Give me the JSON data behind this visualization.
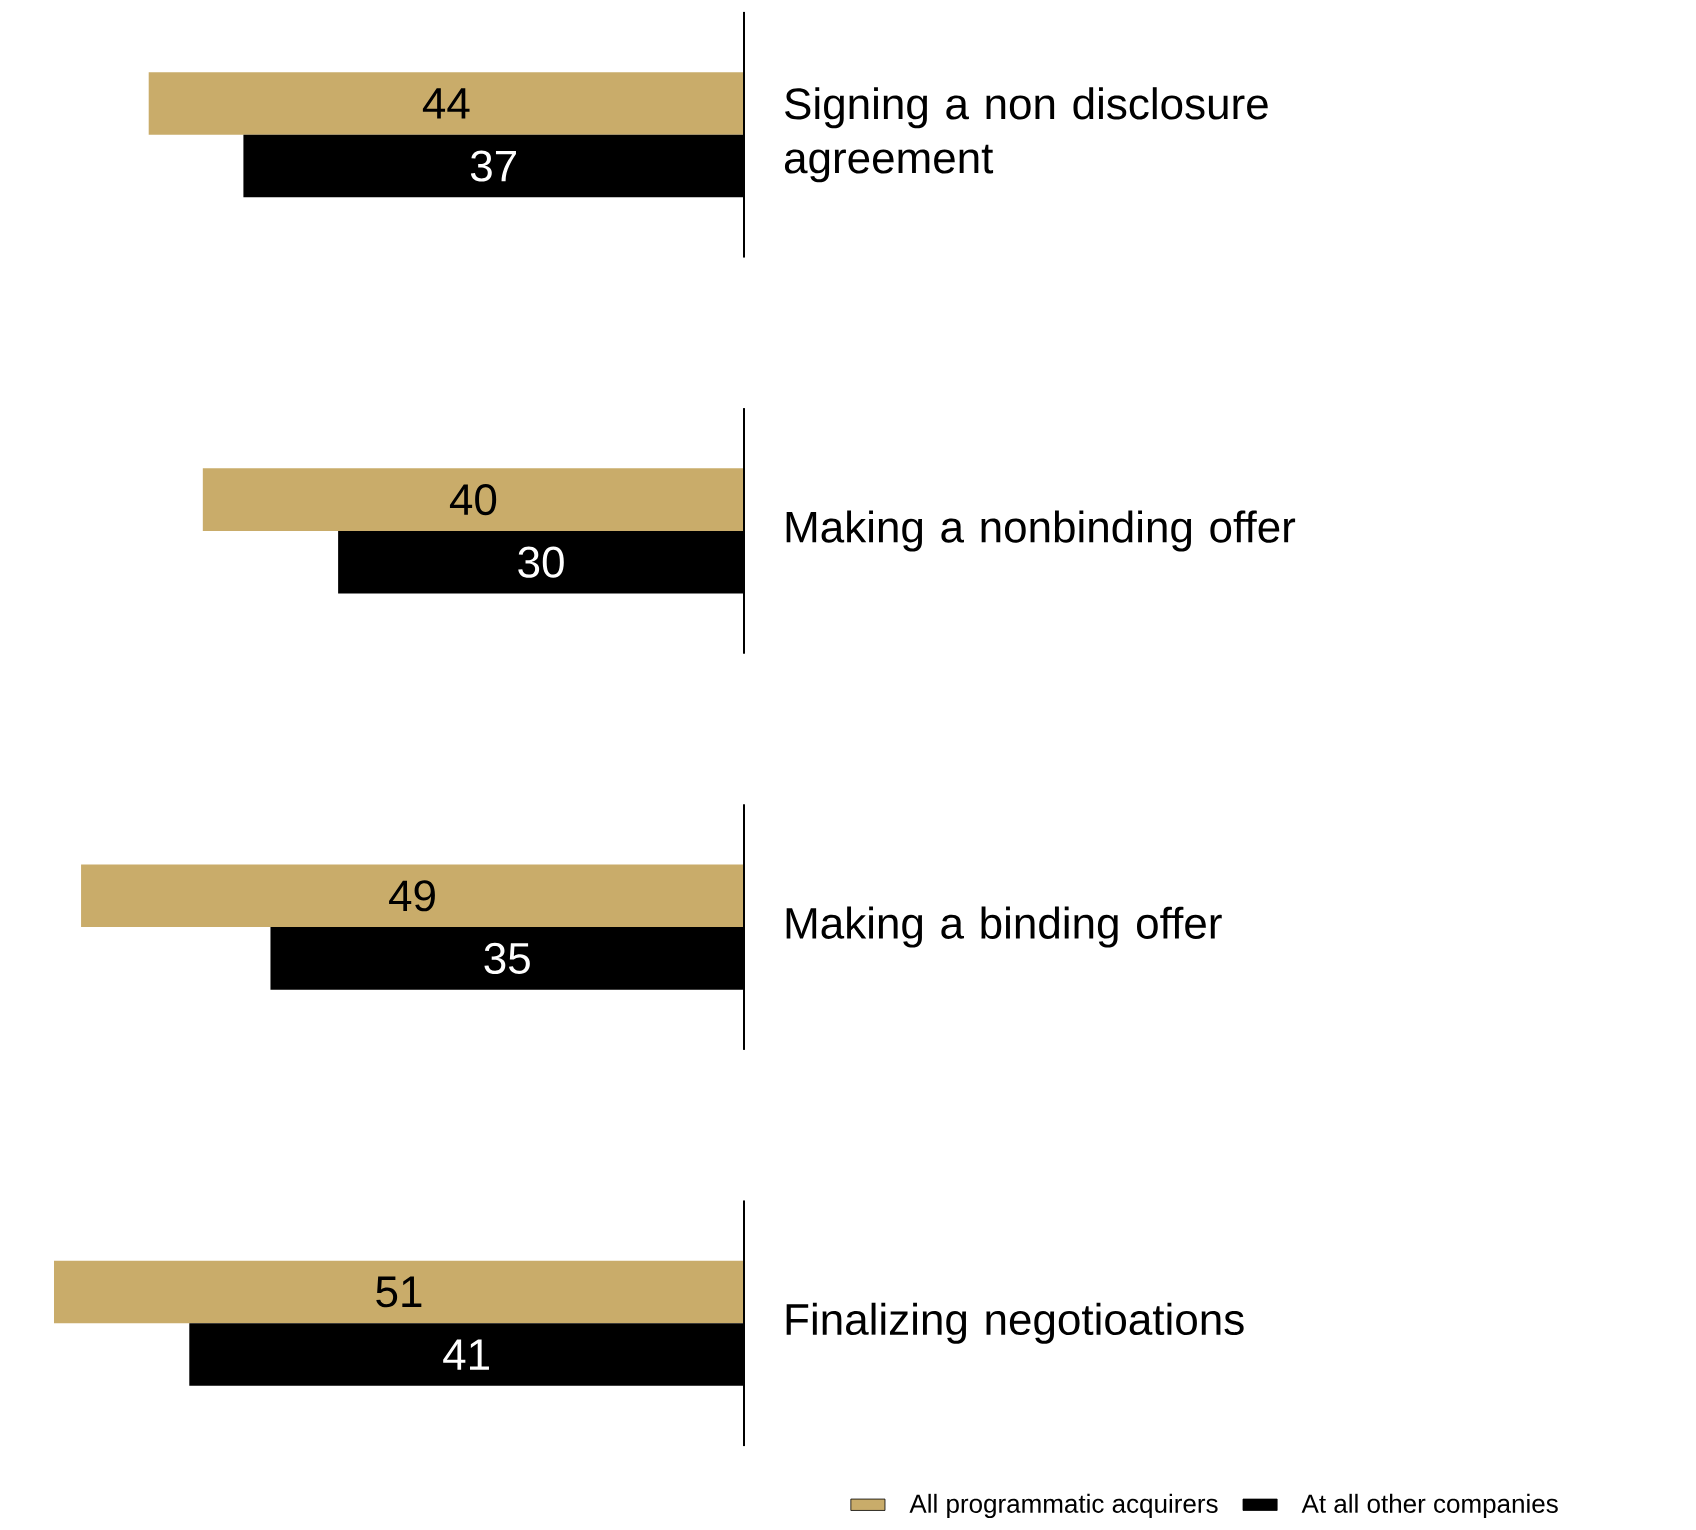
{
  "chart_data": {
    "type": "bar",
    "orientation": "horizontal",
    "categories": [
      "Signing a non disclosure agreement",
      "Making a nonbinding offer",
      "Making a binding offer",
      "Finalizing negotioations"
    ],
    "series": [
      {
        "name": "All programmatic acquirers",
        "color": "#c9ac6a",
        "values": [
          44,
          40,
          49,
          51
        ]
      },
      {
        "name": "At all other companies",
        "color": "#000000",
        "values": [
          37,
          30,
          35,
          41
        ]
      }
    ],
    "data_labels": true,
    "legend": "bottom right"
  }
}
